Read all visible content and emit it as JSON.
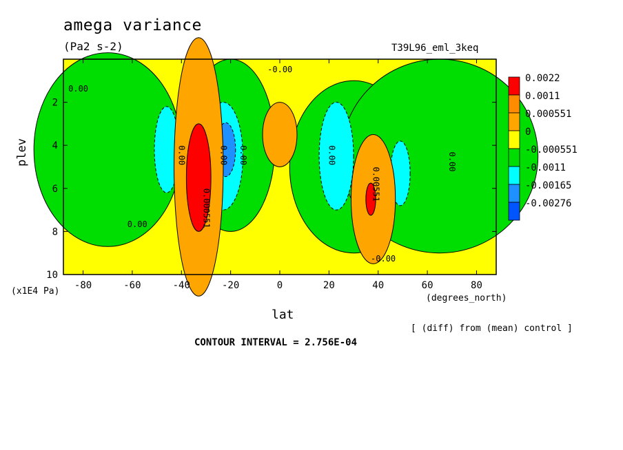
{
  "chart_data": {
    "type": "heatmap",
    "title": "amega variance",
    "units": "(Pa2 s-2)",
    "run_id": "T39L96_eml_3keq",
    "xlabel": "lat",
    "x_units": "(degrees_north)",
    "ylabel": "plev",
    "y_units": "(x1E4 Pa)",
    "footnote": "[ (diff) from (mean) control ]",
    "contour_interval_text": "CONTOUR INTERVAL = 2.756E-04",
    "x_range": [
      -88,
      88
    ],
    "y_range": [
      10,
      0
    ],
    "x_ticks": [
      "-80",
      "-60",
      "-40",
      "-20",
      "0",
      "20",
      "40",
      "60",
      "80"
    ],
    "x_tick_values": [
      -80,
      -60,
      -40,
      -20,
      0,
      20,
      40,
      60,
      80
    ],
    "y_ticks": [
      "2",
      "4",
      "6",
      "8",
      "10"
    ],
    "y_tick_values": [
      2,
      4,
      6,
      8,
      10
    ],
    "levels": [
      "0.0022",
      "0.0011",
      "0.000551",
      "0",
      "-0.000551",
      "-0.0011",
      "-0.00165",
      "-0.00276"
    ],
    "colors": [
      "#ff0000",
      "#ff8c00",
      "#ffa500",
      "#ffff00",
      "#00dd00",
      "#00ffff",
      "#1e90ff",
      "#0055ff"
    ],
    "contour_labels": [
      "0.00",
      "0.00",
      "0.00",
      "0.00",
      "0.00",
      "0.00",
      "0.00",
      "0.00551",
      "0.000551",
      "-0.00",
      "-0.00"
    ],
    "background_value": "0",
    "features": [
      {
        "kind": "green",
        "lat": -70,
        "plev": 4.2,
        "w": 30,
        "h": 9
      },
      {
        "kind": "green",
        "lat": -20,
        "plev": 4.0,
        "w": 18,
        "h": 8
      },
      {
        "kind": "green",
        "lat": 30,
        "plev": 5.0,
        "w": 26,
        "h": 8
      },
      {
        "kind": "green",
        "lat": 65,
        "plev": 4.5,
        "w": 40,
        "h": 9
      },
      {
        "kind": "cyan",
        "lat": -46,
        "plev": 4.2,
        "w": 5,
        "h": 4
      },
      {
        "kind": "cyan",
        "lat": -23,
        "plev": 4.5,
        "w": 8,
        "h": 5
      },
      {
        "kind": "blue",
        "lat": -22,
        "plev": 4.2,
        "w": 4,
        "h": 2.5
      },
      {
        "kind": "cyan",
        "lat": 23,
        "plev": 4.5,
        "w": 7,
        "h": 5
      },
      {
        "kind": "cyan",
        "lat": 49,
        "plev": 5.3,
        "w": 4,
        "h": 3
      },
      {
        "kind": "orange",
        "lat": -33,
        "plev": 5.0,
        "w": 10,
        "h": 12
      },
      {
        "kind": "red",
        "lat": -33,
        "plev": 5.5,
        "w": 5,
        "h": 5
      },
      {
        "kind": "orange",
        "lat": 38,
        "plev": 6.5,
        "w": 9,
        "h": 6
      },
      {
        "kind": "red",
        "lat": 37,
        "plev": 6.5,
        "w": 2,
        "h": 1.5
      },
      {
        "kind": "orange",
        "lat": 0,
        "plev": 3.5,
        "w": 7,
        "h": 3
      }
    ]
  }
}
